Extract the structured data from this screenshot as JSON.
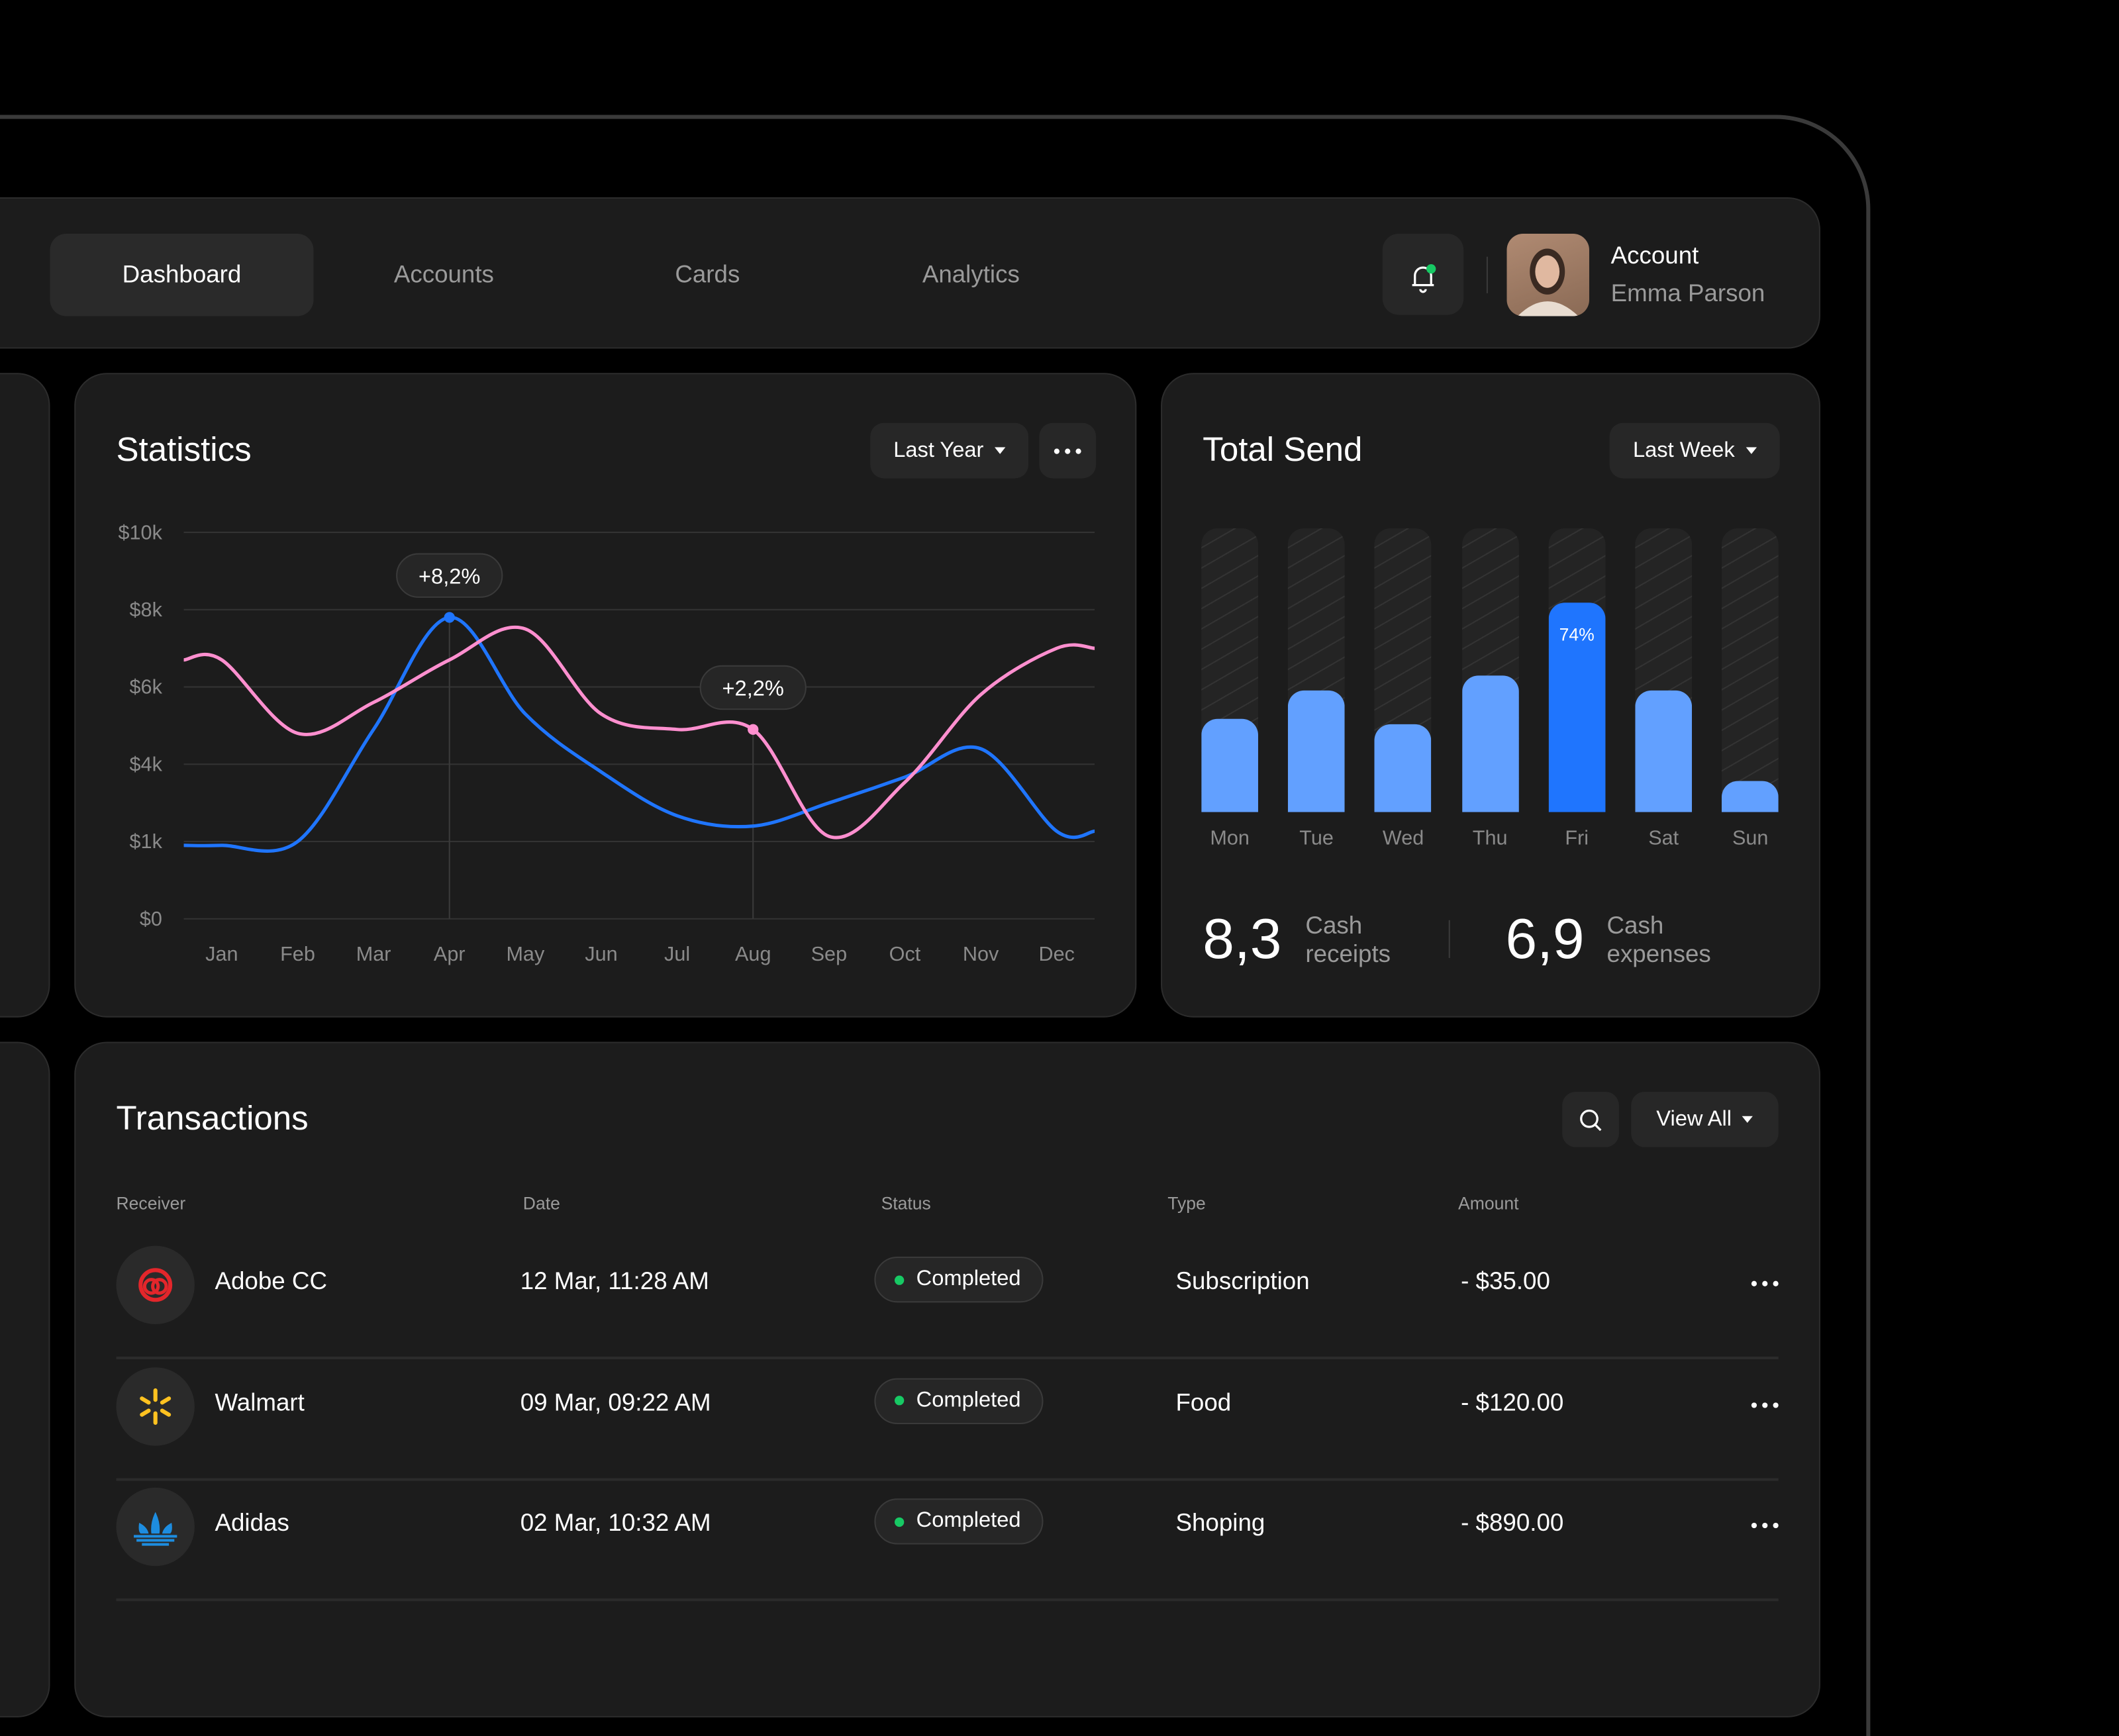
{
  "nav": {
    "tabs": [
      {
        "label": "Dashboard",
        "active": true
      },
      {
        "label": "Accounts"
      },
      {
        "label": "Cards"
      },
      {
        "label": "Analytics"
      }
    ],
    "account": {
      "label": "Account",
      "name": "Emma Parson"
    },
    "notification_dot_color": "#17c964"
  },
  "statistics": {
    "title": "Statistics",
    "period": "Last Year"
  },
  "total_send": {
    "title": "Total Send",
    "period": "Last Week",
    "stats": [
      {
        "value": "8,3",
        "label1": "Cash",
        "label2": "receipts"
      },
      {
        "value": "6,9",
        "label1": "Cash",
        "label2": "expenses"
      }
    ]
  },
  "chart_data": [
    {
      "type": "line",
      "yticks": [
        "$10k",
        "$8k",
        "$6k",
        "$4k",
        "$1k",
        "$0"
      ],
      "ytick_values": [
        10,
        8,
        6,
        4,
        1,
        0
      ],
      "categories": [
        "Jan",
        "Feb",
        "Mar",
        "Apr",
        "May",
        "Jun",
        "Jul",
        "Aug",
        "Sep",
        "Oct",
        "Nov",
        "Dec"
      ],
      "grid": true,
      "series": [
        {
          "color": "#1f75fe",
          "values": [
            0.95,
            1.0,
            4.9,
            7.8,
            5.3,
            3.7,
            2.0,
            1.6,
            2.5,
            3.5,
            4.4,
            1.4
          ]
        },
        {
          "color": "#ff8fcf",
          "values": [
            6.7,
            4.8,
            5.6,
            6.7,
            7.5,
            5.3,
            4.9,
            4.9,
            1.2,
            3.3,
            5.8,
            7.0
          ]
        }
      ],
      "annotations": [
        {
          "category": "Apr",
          "series": 0,
          "text": "+8,2%"
        },
        {
          "category": "Aug",
          "series": 1,
          "text": "+2,2%"
        }
      ]
    },
    {
      "type": "bar",
      "categories": [
        "Mon",
        "Tue",
        "Wed",
        "Thu",
        "Fri",
        "Sat",
        "Sun"
      ],
      "values": [
        33,
        43,
        31,
        48,
        74,
        43,
        11
      ],
      "unit": "%",
      "highlight": {
        "index": 4,
        "label": "74%",
        "color": "#1f75fe"
      },
      "bar_color": "#62a0ff"
    }
  ],
  "transactions": {
    "title": "Transactions",
    "view_all": "View All",
    "columns": [
      "Receiver",
      "Date",
      "Status",
      "Type",
      "Amount"
    ],
    "rows": [
      {
        "receiver": "Adobe CC",
        "icon": "adobe-cc-icon",
        "date": "12 Mar, 11:28 AM",
        "status": "Completed",
        "type": "Subscription",
        "amount": "- $35.00"
      },
      {
        "receiver": "Walmart",
        "icon": "walmart-icon",
        "date": "09 Mar, 09:22 AM",
        "status": "Completed",
        "type": "Food",
        "amount": "- $120.00"
      },
      {
        "receiver": "Adidas",
        "icon": "adidas-icon",
        "date": "02 Mar, 10:32 AM",
        "status": "Completed",
        "type": "Shoping",
        "amount": "- $890.00"
      }
    ]
  }
}
